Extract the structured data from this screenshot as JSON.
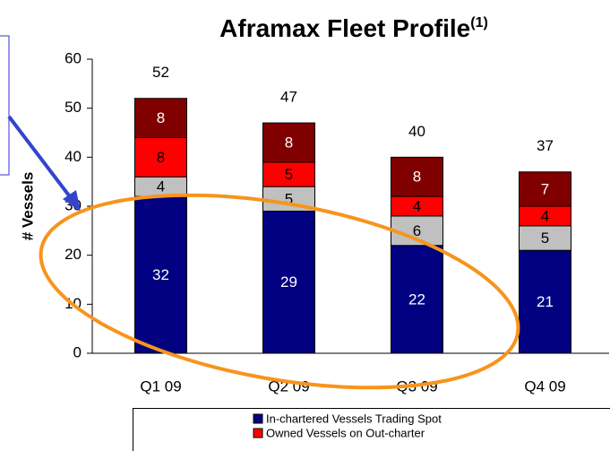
{
  "chart_data": {
    "type": "stacked_bar",
    "title": "Aframax Fleet Profile",
    "title_note": "(1)",
    "y_label": "# Vessels",
    "categories": [
      "Q1 09",
      "Q2 09",
      "Q3 09",
      "Q4 09"
    ],
    "series": [
      {
        "name": "In-chartered Vessels Trading Spot",
        "color": "#000080",
        "values": [
          32,
          29,
          22,
          21
        ]
      },
      {
        "color": "#c0c0c0",
        "values": [
          4,
          5,
          6,
          5
        ]
      },
      {
        "name": "Owned Vessels on Out-charter",
        "color": "#ff0000",
        "values": [
          8,
          5,
          4,
          4
        ]
      },
      {
        "color": "#800000",
        "values": [
          8,
          8,
          8,
          7
        ]
      }
    ],
    "totals": [
      52,
      47,
      40,
      37
    ],
    "ylim": [
      0,
      60
    ],
    "yticks": [
      0,
      10,
      20,
      30,
      40,
      50,
      60
    ]
  }
}
